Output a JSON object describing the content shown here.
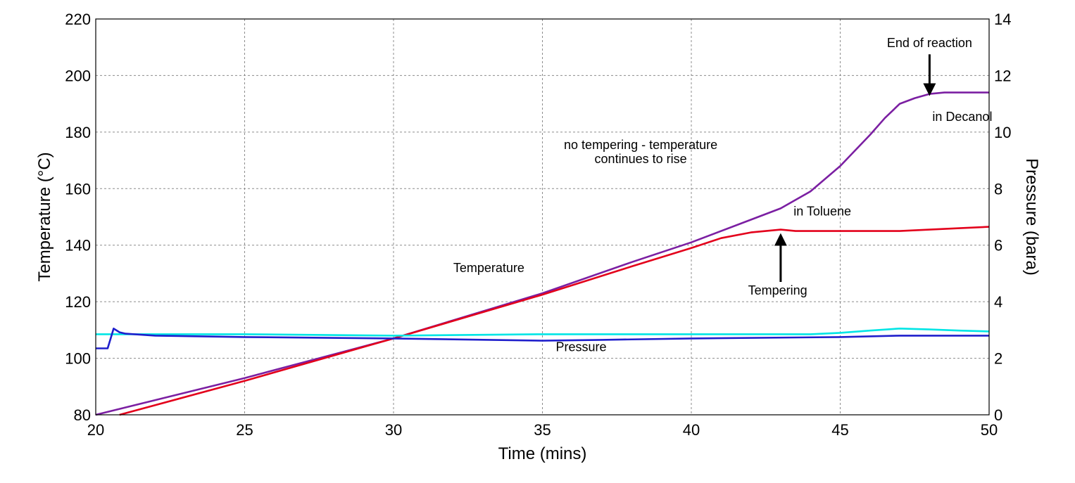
{
  "chart_data": {
    "type": "line",
    "title": "",
    "xlabel": "Time (mins)",
    "ylabel": "Temperature (°C)",
    "y2label": "Pressure (bara)",
    "xlim": [
      20,
      50
    ],
    "ylim": [
      80,
      220
    ],
    "y2lim": [
      0,
      14
    ],
    "xticks": [
      20,
      25,
      30,
      35,
      40,
      45,
      50
    ],
    "yticks": [
      80,
      100,
      120,
      140,
      160,
      180,
      200,
      220
    ],
    "y2ticks": [
      0,
      2,
      4,
      6,
      8,
      10,
      12,
      14
    ],
    "grid": true,
    "series": [
      {
        "key": "temp_decanol",
        "axis": "left",
        "color": "#7b1fa2",
        "points": [
          [
            20,
            80
          ],
          [
            25,
            93
          ],
          [
            30,
            107
          ],
          [
            35,
            123
          ],
          [
            38,
            134
          ],
          [
            40,
            141
          ],
          [
            42,
            149
          ],
          [
            43,
            153
          ],
          [
            44,
            159
          ],
          [
            45,
            168
          ],
          [
            46,
            179
          ],
          [
            46.5,
            185
          ],
          [
            47,
            190
          ],
          [
            47.5,
            192
          ],
          [
            48,
            193.5
          ],
          [
            48.5,
            194
          ],
          [
            50,
            194
          ]
        ]
      },
      {
        "key": "temp_toluene",
        "axis": "left",
        "color": "#e3001b",
        "points": [
          [
            20.8,
            80
          ],
          [
            25,
            92
          ],
          [
            30,
            107
          ],
          [
            35,
            122.5
          ],
          [
            38,
            132.5
          ],
          [
            40,
            139
          ],
          [
            41,
            142.5
          ],
          [
            42,
            144.5
          ],
          [
            43,
            145.5
          ],
          [
            43.5,
            145
          ],
          [
            44,
            145
          ],
          [
            45,
            145
          ],
          [
            46,
            145
          ],
          [
            47,
            145
          ],
          [
            48,
            145.5
          ],
          [
            49,
            146
          ],
          [
            50,
            146.5
          ]
        ]
      },
      {
        "key": "pressure_1",
        "axis": "right",
        "color": "#00e5e5",
        "points": [
          [
            20,
            2.85
          ],
          [
            25,
            2.85
          ],
          [
            30,
            2.8
          ],
          [
            35,
            2.85
          ],
          [
            40,
            2.85
          ],
          [
            44,
            2.85
          ],
          [
            45,
            2.9
          ],
          [
            46,
            2.98
          ],
          [
            47,
            3.05
          ],
          [
            48,
            3.02
          ],
          [
            49,
            2.98
          ],
          [
            50,
            2.95
          ]
        ]
      },
      {
        "key": "pressure_2",
        "axis": "right",
        "color": "#1f1fcc",
        "points": [
          [
            20,
            2.35
          ],
          [
            20.4,
            2.35
          ],
          [
            20.5,
            2.7
          ],
          [
            20.6,
            3.05
          ],
          [
            20.8,
            2.92
          ],
          [
            21,
            2.87
          ],
          [
            22,
            2.8
          ],
          [
            25,
            2.75
          ],
          [
            30,
            2.7
          ],
          [
            35,
            2.62
          ],
          [
            37,
            2.65
          ],
          [
            40,
            2.7
          ],
          [
            45,
            2.75
          ],
          [
            47,
            2.8
          ],
          [
            50,
            2.8
          ]
        ]
      }
    ],
    "annotations": [
      {
        "text": "End of reaction",
        "x": 48,
        "y": 210
      },
      {
        "text": "in Decanol",
        "x": 49.1,
        "y": 184
      },
      {
        "text": "no tempering - temperature",
        "x": 38.3,
        "y": 174
      },
      {
        "text": "continues to rise",
        "x": 38.3,
        "y": 169
      },
      {
        "text": "in Toluene",
        "x": 44.4,
        "y": 150.5
      },
      {
        "text": "Temperature",
        "x": 33.2,
        "y": 130.5
      },
      {
        "text": "Tempering",
        "x": 42.9,
        "y": 122.5
      },
      {
        "text": "Pressure",
        "x": 36.3,
        "y": 102.5
      }
    ],
    "arrows": [
      {
        "name": "end-of-reaction-arrow",
        "x": 48,
        "from_y": 207.5,
        "to_y": 195
      },
      {
        "name": "tempering-arrow",
        "x": 43,
        "from_y": 127,
        "to_y": 142
      }
    ]
  }
}
